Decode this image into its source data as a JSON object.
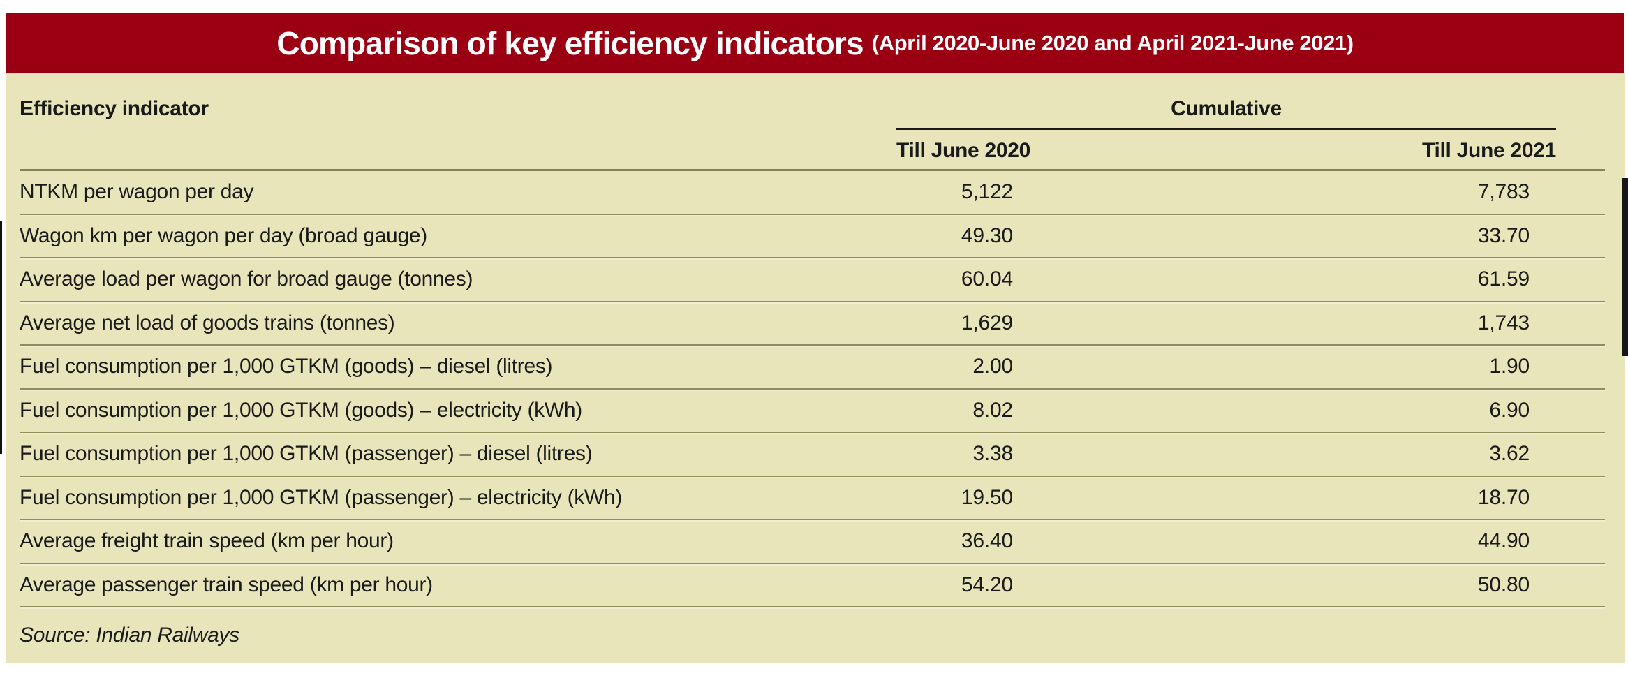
{
  "title": {
    "main": "Comparison of key efficiency indicators",
    "sub": "(April 2020-June 2020 and April 2021-June 2021)"
  },
  "header": {
    "indicator_label": "Efficiency indicator",
    "group_label": "Cumulative",
    "col_2020": "Till June 2020",
    "col_2021": "Till June 2021"
  },
  "source": "Source: Indian Railways",
  "colors": {
    "band_red": "#9a0011",
    "table_beige": "#e8e5bb",
    "row_line_olive": "#8f8d5c",
    "header_line_olive": "#85834f",
    "cumulative_underline": "#1a1a1a",
    "text": "#1a1a1a"
  },
  "chart_data": {
    "type": "table",
    "title": "Comparison of key efficiency indicators (April 2020-June 2020 and April 2021-June 2021)",
    "columns": [
      "Efficiency indicator",
      "Till June 2020",
      "Till June 2021"
    ],
    "column_group": {
      "label": "Cumulative",
      "spans": [
        "Till June 2020",
        "Till June 2021"
      ]
    },
    "rows": [
      {
        "indicator": "NTKM per wagon per day",
        "till_june_2020": "5,122",
        "till_june_2021": "7,783"
      },
      {
        "indicator": "Wagon km per wagon per day (broad gauge)",
        "till_june_2020": "49.30",
        "till_june_2021": "33.70"
      },
      {
        "indicator": "Average load per wagon for broad gauge (tonnes)",
        "till_june_2020": "60.04",
        "till_june_2021": "61.59"
      },
      {
        "indicator": "Average net load of goods trains (tonnes)",
        "till_june_2020": "1,629",
        "till_june_2021": "1,743"
      },
      {
        "indicator": "Fuel consumption per 1,000 GTKM (goods) – diesel (litres)",
        "till_june_2020": "2.00",
        "till_june_2021": "1.90"
      },
      {
        "indicator": "Fuel consumption per 1,000 GTKM (goods) – electricity (kWh)",
        "till_june_2020": "8.02",
        "till_june_2021": "6.90"
      },
      {
        "indicator": "Fuel consumption per 1,000 GTKM (passenger) – diesel (litres)",
        "till_june_2020": "3.38",
        "till_june_2021": "3.62"
      },
      {
        "indicator": "Fuel consumption per 1,000 GTKM (passenger) – electricity (kWh)",
        "till_june_2020": "19.50",
        "till_june_2021": "18.70"
      },
      {
        "indicator": "Average freight train speed (km per hour)",
        "till_june_2020": "36.40",
        "till_june_2021": "44.90"
      },
      {
        "indicator": "Average passenger train speed (km per hour)",
        "till_june_2020": "54.20",
        "till_june_2021": "50.80"
      }
    ],
    "source": "Source: Indian Railways"
  }
}
